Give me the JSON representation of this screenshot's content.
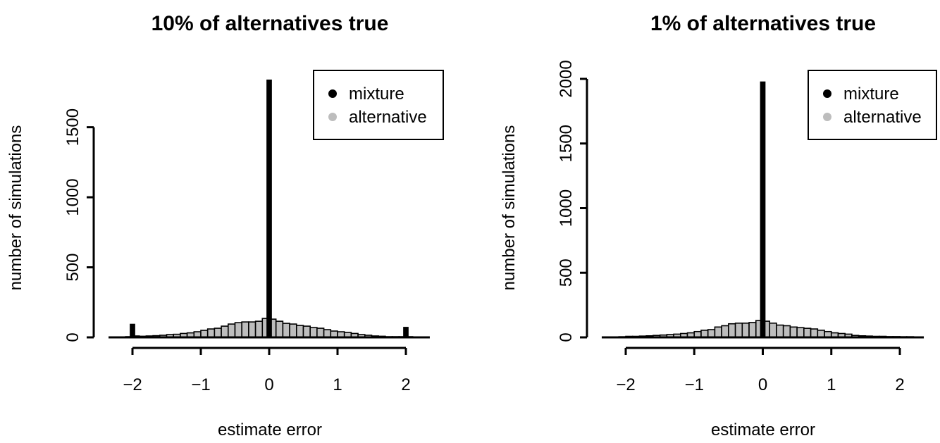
{
  "chart_data": [
    {
      "type": "bar",
      "title": "10% of alternatives true",
      "xlabel": "estimate error",
      "ylabel": "number of simulations",
      "xlim": [
        -2.35,
        2.35
      ],
      "ylim": [
        0,
        1850
      ],
      "xticks": [
        -2,
        -1,
        0,
        1,
        2
      ],
      "xtick_labels": [
        "−2",
        "−1",
        "0",
        "1",
        "2"
      ],
      "yticks": [
        0,
        500,
        1000,
        1500
      ],
      "ytick_labels": [
        "0",
        "500",
        "1000",
        "1500"
      ],
      "bin_width": 0.1,
      "legend": {
        "position": "top-right",
        "entries": [
          "mixture",
          "alternative"
        ]
      },
      "colors": {
        "mixture": "#000000",
        "alternative": "#bdbdbd"
      },
      "series": [
        {
          "name": "mixture",
          "bins": [
            {
              "start": -2.05,
              "end": -1.95,
              "value": 97
            },
            {
              "start": -0.05,
              "end": 0.05,
              "value": 1840
            },
            {
              "start": 1.95,
              "end": 2.05,
              "value": 75
            }
          ]
        },
        {
          "name": "alternative",
          "bin_start": -2.1,
          "values": [
            5,
            10,
            8,
            10,
            12,
            15,
            20,
            22,
            28,
            32,
            40,
            50,
            60,
            65,
            80,
            95,
            105,
            110,
            110,
            115,
            135,
            130,
            115,
            100,
            95,
            85,
            80,
            70,
            65,
            55,
            45,
            40,
            35,
            28,
            20,
            15,
            10,
            8,
            5,
            5,
            5,
            5,
            3
          ]
        }
      ]
    },
    {
      "type": "bar",
      "title": "1% of alternatives true",
      "xlabel": "estimate error",
      "ylabel": "number of simulations",
      "xlim": [
        -2.35,
        2.35
      ],
      "ylim": [
        0,
        2000
      ],
      "xticks": [
        -2,
        -1,
        0,
        1,
        2
      ],
      "xtick_labels": [
        "−2",
        "−1",
        "0",
        "1",
        "2"
      ],
      "yticks": [
        0,
        500,
        1000,
        1500,
        2000
      ],
      "ytick_labels": [
        "0",
        "500",
        "1000",
        "1500",
        "2000"
      ],
      "bin_width": 0.1,
      "legend": {
        "position": "top-right",
        "entries": [
          "mixture",
          "alternative"
        ]
      },
      "colors": {
        "mixture": "#000000",
        "alternative": "#bdbdbd"
      },
      "series": [
        {
          "name": "mixture",
          "bins": [
            {
              "start": -0.05,
              "end": 0.05,
              "value": 1980
            }
          ]
        },
        {
          "name": "alternative",
          "bin_start": -2.1,
          "values": [
            5,
            8,
            8,
            10,
            12,
            15,
            18,
            22,
            25,
            30,
            35,
            45,
            55,
            60,
            80,
            90,
            105,
            110,
            110,
            115,
            130,
            125,
            110,
            95,
            90,
            80,
            75,
            70,
            65,
            55,
            45,
            35,
            30,
            25,
            15,
            12,
            10,
            8,
            8,
            6,
            6,
            5,
            5
          ]
        }
      ]
    }
  ]
}
